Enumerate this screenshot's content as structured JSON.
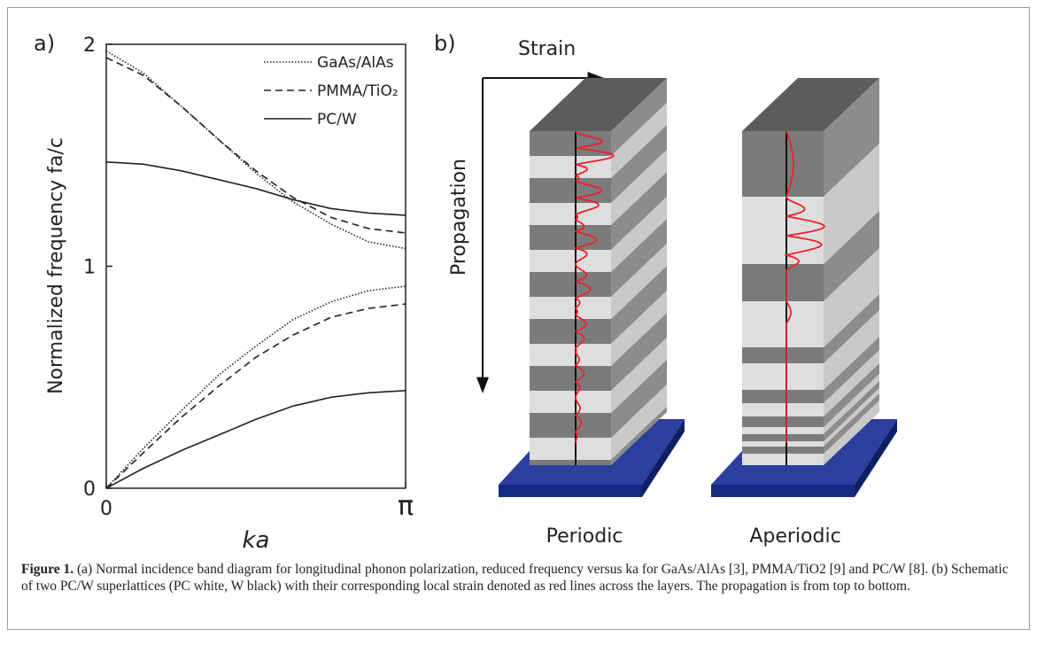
{
  "chart_data": {
    "type": "line",
    "panel_label": "a)",
    "x_label": "ka",
    "y_label": "Normalized frequency fa/c",
    "x": [
      0,
      0.39,
      0.79,
      1.18,
      1.57,
      1.96,
      2.36,
      2.75,
      3.1416
    ],
    "xlim": [
      0,
      3.1416
    ],
    "xticks": [
      0,
      {
        "value": 3.1416,
        "label": "π"
      }
    ],
    "ylim": [
      0,
      2
    ],
    "yticks": [
      0,
      1,
      2
    ],
    "series": [
      {
        "name": "GaAs/AlAs",
        "color": "#222222",
        "dash": "dotted",
        "values": [
          0,
          0.18,
          0.35,
          0.51,
          0.64,
          0.76,
          0.84,
          0.89,
          0.91
        ],
        "upper_values": [
          1.97,
          1.87,
          1.72,
          1.57,
          1.42,
          1.29,
          1.19,
          1.11,
          1.08
        ]
      },
      {
        "name": "PMMA/TiO₂",
        "color": "#222222",
        "dash": "dashed",
        "values": [
          0,
          0.16,
          0.32,
          0.46,
          0.59,
          0.69,
          0.77,
          0.81,
          0.83
        ],
        "upper_values": [
          1.94,
          1.86,
          1.72,
          1.57,
          1.43,
          1.31,
          1.22,
          1.17,
          1.15
        ]
      },
      {
        "name": "PC/W",
        "color": "#222222",
        "dash": "solid",
        "values": [
          0,
          0.09,
          0.17,
          0.24,
          0.31,
          0.37,
          0.41,
          0.43,
          0.44
        ],
        "upper_values": [
          1.47,
          1.46,
          1.43,
          1.39,
          1.35,
          1.3,
          1.26,
          1.24,
          1.23
        ]
      }
    ]
  },
  "schematic": {
    "panel_label": "b)",
    "strain": "Strain",
    "propagation": "Propagation",
    "left_label": "Periodic",
    "right_label": "Aperiodic"
  },
  "caption": {
    "label": "Figure 1.",
    "text": "(a) Normal incidence band diagram for longitudinal phonon polarization, reduced frequency versus ka for GaAs/AlAs [3], PMMA/TiO2 [9] and PC/W [8]. (b) Schematic of two PC/W superlattices (PC white, W black) with their corresponding local strain denoted as red lines across the layers. The propagation is from top to bottom."
  }
}
